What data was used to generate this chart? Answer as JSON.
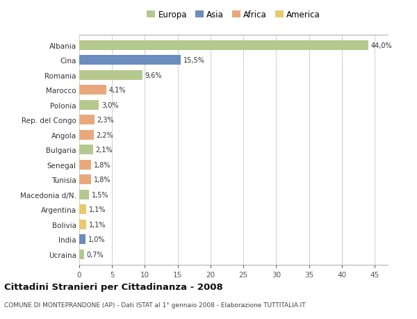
{
  "countries": [
    "Albania",
    "Cina",
    "Romania",
    "Marocco",
    "Polonia",
    "Rep. del Congo",
    "Angola",
    "Bulgaria",
    "Senegal",
    "Tunisia",
    "Macedonia d/N.",
    "Argentina",
    "Bolivia",
    "India",
    "Ucraina"
  ],
  "values": [
    44.0,
    15.5,
    9.6,
    4.1,
    3.0,
    2.3,
    2.2,
    2.1,
    1.8,
    1.8,
    1.5,
    1.1,
    1.1,
    1.0,
    0.7
  ],
  "labels": [
    "44,0%",
    "15,5%",
    "9,6%",
    "4,1%",
    "3,0%",
    "2,3%",
    "2,2%",
    "2,1%",
    "1,8%",
    "1,8%",
    "1,5%",
    "1,1%",
    "1,1%",
    "1,0%",
    "0,7%"
  ],
  "colors": [
    "#b5c98e",
    "#6b8cbf",
    "#b5c98e",
    "#e8a87c",
    "#b5c98e",
    "#e8a87c",
    "#e8a87c",
    "#b5c98e",
    "#e8a87c",
    "#e8a87c",
    "#b5c98e",
    "#e8c96e",
    "#e8c96e",
    "#6b8cbf",
    "#b5c98e"
  ],
  "legend_labels": [
    "Europa",
    "Asia",
    "Africa",
    "America"
  ],
  "legend_colors": [
    "#b5c98e",
    "#6b8cbf",
    "#e8a87c",
    "#e8c96e"
  ],
  "title": "Cittadini Stranieri per Cittadinanza - 2008",
  "subtitle": "COMUNE DI MONTEPRANDONE (AP) - Dati ISTAT al 1° gennaio 2008 - Elaborazione TUTTITALIA.IT",
  "xlim": [
    0,
    47
  ],
  "xticks": [
    0,
    5,
    10,
    15,
    20,
    25,
    30,
    35,
    40,
    45
  ],
  "bg_color": "#ffffff",
  "grid_color": "#d0d0d0",
  "bar_height": 0.65
}
